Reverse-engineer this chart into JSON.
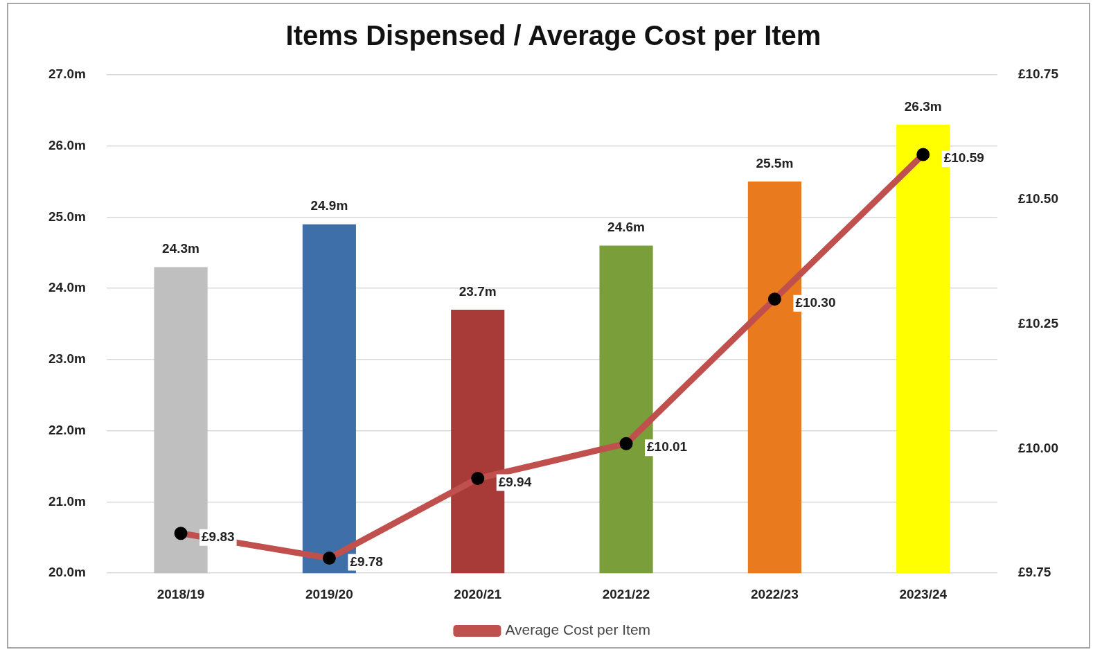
{
  "chart_data": {
    "type": "bar",
    "title": "Items Dispensed / Average Cost per Item",
    "categories": [
      "2018/19",
      "2019/20",
      "2020/21",
      "2021/22",
      "2022/23",
      "2023/24"
    ],
    "series": [
      {
        "colors": [
          "#bfbfbf",
          "#3f6fa8",
          "#a83a38",
          "#7a9e3a",
          "#ea7a1e",
          "#ffff00"
        ],
        "values": [
          24.3,
          24.9,
          23.7,
          24.6,
          25.5,
          26.3
        ],
        "value_labels": [
          "24.3m",
          "24.9m",
          "23.7m",
          "24.6m",
          "25.5m",
          "26.3m"
        ]
      },
      {
        "type": "line",
        "name": "Average Cost per Item",
        "color": "#c0504d",
        "axis": "y2",
        "values": [
          9.83,
          9.78,
          9.94,
          10.01,
          10.3,
          10.59
        ],
        "value_labels": [
          "£9.83",
          "£9.78",
          "£9.94",
          "£10.01",
          "£10.30",
          "£10.59"
        ]
      }
    ],
    "ylim": [
      20,
      27
    ],
    "yticks": [
      {
        "value": 20,
        "label": "20.0m"
      },
      {
        "value": 21,
        "label": "21.0m"
      },
      {
        "value": 22,
        "label": "22.0m"
      },
      {
        "value": 23,
        "label": "23.0m"
      },
      {
        "value": 24,
        "label": "24.0m"
      },
      {
        "value": 25,
        "label": "25.0m"
      },
      {
        "value": 26,
        "label": "26.0m"
      },
      {
        "value": 27,
        "label": "27.0m"
      }
    ],
    "y2lim": [
      9.75,
      10.75
    ],
    "y2ticks": [
      {
        "value": 9.75,
        "label": "£9.75"
      },
      {
        "value": 10,
        "label": "£10.00"
      },
      {
        "value": 10.25,
        "label": "£10.25"
      },
      {
        "value": 10.5,
        "label": "£10.50"
      },
      {
        "value": 10.75,
        "label": "£10.75"
      }
    ],
    "grid": "y",
    "legend": "bottom",
    "marker": "circle",
    "line_style": "solid"
  }
}
